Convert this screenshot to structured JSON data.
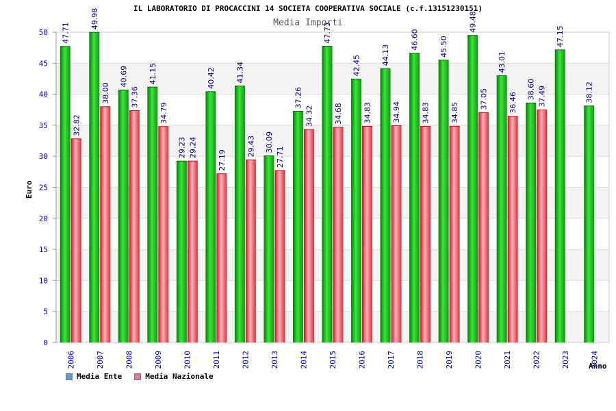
{
  "chart_data": {
    "type": "bar",
    "title": "IL LABORATORIO DI PROCACCINI 14 SOCIETA COOPERATIVA SOCIALE (c.f.13151230151)",
    "subtitle": "Media Importi",
    "xlabel": "Anno",
    "ylabel": "Euro",
    "ylim": [
      0,
      50
    ],
    "yticks": [
      0,
      5,
      10,
      15,
      20,
      25,
      30,
      35,
      40,
      45,
      50
    ],
    "grid": true,
    "legend_position": "bottom-left",
    "categories": [
      "2006",
      "2007",
      "2008",
      "2009",
      "2010",
      "2011",
      "2012",
      "2013",
      "2014",
      "2015",
      "2016",
      "2017",
      "2018",
      "2019",
      "2020",
      "2021",
      "2022",
      "2023",
      "2024"
    ],
    "series": [
      {
        "name": "Media Ente",
        "color": "#1aa31a",
        "legend_color": "#5b9bd5",
        "values": [
          47.71,
          49.98,
          40.69,
          41.15,
          29.23,
          40.42,
          41.34,
          30.09,
          37.26,
          47.73,
          42.45,
          44.13,
          46.6,
          45.5,
          49.48,
          43.01,
          38.6,
          47.15,
          38.12
        ],
        "labels": [
          "47.71",
          "49.98",
          "40.69",
          "41.15",
          "29.23",
          "40.42",
          "41.34",
          "30.09",
          "37.26",
          "47.73",
          "42.45",
          "44.13",
          "46.60",
          "45.50",
          "49.48",
          "43.01",
          "38.60",
          "47.15",
          "38.12"
        ]
      },
      {
        "name": "Media Nazionale",
        "color": "#e8323c",
        "legend_color": "#e377a8",
        "values": [
          32.82,
          38.0,
          37.36,
          34.79,
          29.24,
          27.19,
          29.43,
          27.71,
          34.32,
          34.68,
          34.83,
          34.94,
          34.83,
          34.85,
          37.05,
          36.46,
          37.49,
          null,
          null
        ],
        "labels": [
          "32.82",
          "38.00",
          "37.36",
          "34.79",
          "29.24",
          "27.19",
          "29.43",
          "27.71",
          "34.32",
          "34.68",
          "34.83",
          "34.94",
          "34.83",
          "34.85",
          "37.05",
          "36.46",
          "37.49",
          "",
          ""
        ]
      }
    ]
  }
}
